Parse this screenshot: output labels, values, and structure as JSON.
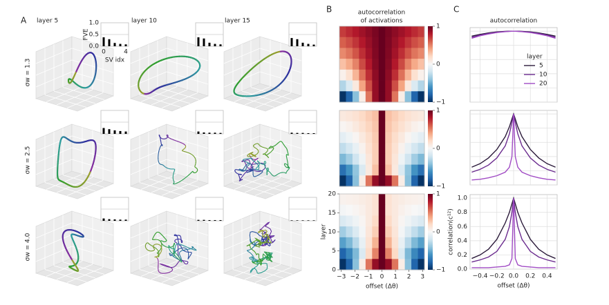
{
  "chart_data": [
    {
      "type": "trajectory_grid",
      "panel_label": "A",
      "columns": [
        "layer 5",
        "layer 10",
        "layer 15"
      ],
      "rows": [
        "σw = 1.3",
        "σw = 2.5",
        "σw = 4.0"
      ],
      "inset": {
        "type": "bar",
        "color": "#000000",
        "xlabel": "SV idx",
        "ylabel": "FVE",
        "xlim": [
          -0.5,
          4.5
        ],
        "xticks": [
          0,
          4
        ],
        "ylim": [
          0,
          1
        ],
        "yticks": [
          {
            "value": 0,
            "label": "0.0"
          },
          0.5,
          {
            "value": 1,
            "label": "1.0"
          }
        ],
        "values": [
          [
            [
              0.38,
              0.3,
              0.14,
              0.1,
              0.08
            ],
            [
              0.38,
              0.33,
              0.15,
              0.1,
              0.08
            ],
            [
              0.35,
              0.3,
              0.15,
              0.1,
              0.07
            ]
          ],
          [
            [
              0.25,
              0.2,
              0.15,
              0.12,
              0.1
            ],
            [
              0.1,
              0.06,
              0.05,
              0.05,
              0.04
            ],
            [
              0.05,
              0.04,
              0.04,
              0.03,
              0.03
            ]
          ],
          [
            [
              0.1,
              0.07,
              0.06,
              0.05,
              0.05
            ],
            [
              0.04,
              0.04,
              0.03,
              0.03,
              0.03
            ],
            [
              0.02,
              0.02,
              0.02,
              0.02,
              0.02
            ]
          ]
        ]
      }
    },
    {
      "type": "heatmap",
      "panel_label": "B",
      "title": [
        "autocorrelation",
        "of activations"
      ],
      "xlabel": "offset (Δθ)",
      "ylabel": "layer",
      "xlim": [
        -3.14,
        3.14
      ],
      "xticks": [
        {
          "value": -3,
          "label": "−3"
        },
        {
          "value": -2,
          "label": "−2"
        },
        {
          "value": -1,
          "label": "−1"
        },
        0,
        1,
        2,
        3
      ],
      "ylim": [
        0,
        20
      ],
      "yticks": [
        0,
        5,
        10,
        15,
        20
      ],
      "zlim": [
        -1,
        1
      ],
      "zticks": [
        {
          "value": -1,
          "label": "−1"
        },
        0,
        1
      ],
      "colormap": [
        "#053061",
        "#2166ac",
        "#4393c3",
        "#92c5de",
        "#d1e5f0",
        "#f7f7f7",
        "#fddbc7",
        "#f4a582",
        "#d6604d",
        "#b2182b",
        "#67001f"
      ],
      "maps": [
        [
          [
            0.7,
            0.75,
            0.8,
            0.85,
            0.9,
            0.95,
            1,
            0.95,
            0.9,
            0.85,
            0.8,
            0.75,
            0.7
          ],
          [
            0.6,
            0.65,
            0.72,
            0.8,
            0.87,
            0.94,
            1,
            0.94,
            0.87,
            0.8,
            0.72,
            0.65,
            0.6
          ],
          [
            0.48,
            0.54,
            0.63,
            0.74,
            0.84,
            0.93,
            1,
            0.93,
            0.84,
            0.74,
            0.63,
            0.54,
            0.48
          ],
          [
            0.3,
            0.38,
            0.5,
            0.66,
            0.8,
            0.92,
            1,
            0.92,
            0.8,
            0.66,
            0.5,
            0.38,
            0.3
          ],
          [
            0.05,
            0.16,
            0.34,
            0.55,
            0.74,
            0.9,
            1,
            0.9,
            0.74,
            0.55,
            0.34,
            0.16,
            0.05
          ],
          [
            -0.3,
            -0.15,
            0.1,
            0.4,
            0.65,
            0.88,
            1,
            0.88,
            0.65,
            0.4,
            0.1,
            -0.15,
            -0.3
          ],
          [
            -0.99,
            -0.8,
            -0.42,
            0.07,
            0.54,
            0.88,
            1,
            0.88,
            0.54,
            0.07,
            -0.42,
            -0.8,
            -0.99
          ]
        ],
        [
          [
            0.1,
            0.12,
            0.15,
            0.2,
            0.25,
            0.3,
            1,
            0.3,
            0.25,
            0.2,
            0.15,
            0.12,
            0.1
          ],
          [
            0.02,
            0.05,
            0.1,
            0.16,
            0.22,
            0.28,
            1,
            0.28,
            0.22,
            0.16,
            0.1,
            0.05,
            0.02
          ],
          [
            -0.1,
            -0.05,
            0.02,
            0.1,
            0.18,
            0.26,
            1,
            0.26,
            0.18,
            0.1,
            0.02,
            -0.05,
            -0.1
          ],
          [
            -0.25,
            -0.18,
            -0.08,
            0.04,
            0.15,
            0.25,
            1,
            0.25,
            0.15,
            0.04,
            -0.08,
            -0.18,
            -0.25
          ],
          [
            -0.45,
            -0.35,
            -0.2,
            -0.05,
            0.12,
            0.25,
            1,
            0.25,
            0.12,
            -0.05,
            -0.2,
            -0.35,
            -0.45
          ],
          [
            -0.75,
            -0.6,
            -0.4,
            -0.15,
            0.1,
            0.3,
            1,
            0.3,
            0.1,
            -0.15,
            -0.4,
            -0.6,
            -0.75
          ],
          [
            -0.99,
            -0.8,
            -0.42,
            0.07,
            0.54,
            0.88,
            1,
            0.88,
            0.54,
            0.07,
            -0.42,
            -0.8,
            -0.99
          ]
        ],
        [
          [
            0.04,
            0.05,
            0.06,
            0.08,
            0.1,
            0.15,
            1,
            0.15,
            0.1,
            0.08,
            0.06,
            0.05,
            0.04
          ],
          [
            -0.02,
            0,
            0.02,
            0.05,
            0.1,
            0.15,
            1,
            0.15,
            0.1,
            0.05,
            0.02,
            0,
            -0.02
          ],
          [
            -0.15,
            -0.1,
            -0.05,
            0.02,
            0.1,
            0.2,
            1,
            0.2,
            0.1,
            0.02,
            -0.05,
            -0.1,
            -0.15
          ],
          [
            -0.35,
            -0.25,
            -0.15,
            -0.02,
            0.12,
            0.25,
            1,
            0.25,
            0.12,
            -0.02,
            -0.15,
            -0.25,
            -0.35
          ],
          [
            -0.55,
            -0.45,
            -0.28,
            -0.08,
            0.15,
            0.35,
            1,
            0.35,
            0.15,
            -0.08,
            -0.28,
            -0.45,
            -0.55
          ],
          [
            -0.8,
            -0.65,
            -0.45,
            -0.15,
            0.2,
            0.5,
            1,
            0.5,
            0.2,
            -0.15,
            -0.45,
            -0.65,
            -0.8
          ],
          [
            -0.99,
            -0.8,
            -0.42,
            0.07,
            0.54,
            0.88,
            1,
            0.88,
            0.54,
            0.07,
            -0.42,
            -0.8,
            -0.99
          ]
        ]
      ]
    },
    {
      "type": "line",
      "panel_label": "C",
      "title": "autocorrelation",
      "xlabel": "offset (Δθ)",
      "ylabel": "correlation(c¹²)",
      "grid": true,
      "xlim": [
        -0.52,
        0.52
      ],
      "xticks": [
        {
          "value": -0.4,
          "label": "−0.4"
        },
        {
          "value": -0.2,
          "label": "−0.2"
        },
        {
          "value": 0,
          "label": "0.0"
        },
        0.2,
        0.4
      ],
      "ylim": [
        0,
        1.05
      ],
      "yticks": [
        {
          "value": 0,
          "label": "0.0"
        },
        0.2,
        0.4,
        0.6,
        0.8,
        {
          "value": 1,
          "label": "1.0"
        }
      ],
      "legend": {
        "title": "layer",
        "position": "center right"
      },
      "x": [
        -0.5,
        -0.4,
        -0.3,
        -0.2,
        -0.1,
        -0.05,
        -0.02,
        0,
        0.02,
        0.05,
        0.1,
        0.2,
        0.3,
        0.4,
        0.5
      ],
      "series": [
        {
          "name": "5",
          "color": "#2b1a3a",
          "values": [
            [
              0.93,
              0.955,
              0.975,
              0.99,
              0.997,
              0.999,
              1,
              1,
              1,
              0.999,
              0.997,
              0.99,
              0.975,
              0.955,
              0.93
            ],
            [
              0.25,
              0.3,
              0.38,
              0.5,
              0.68,
              0.82,
              0.93,
              1,
              0.93,
              0.82,
              0.68,
              0.5,
              0.38,
              0.3,
              0.25
            ],
            [
              0.15,
              0.2,
              0.28,
              0.42,
              0.65,
              0.8,
              0.92,
              1,
              0.92,
              0.8,
              0.65,
              0.42,
              0.28,
              0.2,
              0.15
            ]
          ]
        },
        {
          "name": "10",
          "color": "#6a2a8e",
          "values": [
            [
              0.915,
              0.945,
              0.968,
              0.985,
              0.995,
              0.998,
              0.999,
              1,
              0.999,
              0.998,
              0.995,
              0.985,
              0.968,
              0.945,
              0.915
            ],
            [
              0.18,
              0.22,
              0.28,
              0.38,
              0.55,
              0.72,
              0.88,
              1,
              0.88,
              0.72,
              0.55,
              0.38,
              0.28,
              0.22,
              0.18
            ],
            [
              0.1,
              0.13,
              0.17,
              0.25,
              0.42,
              0.6,
              0.8,
              1,
              0.8,
              0.6,
              0.42,
              0.25,
              0.17,
              0.13,
              0.1
            ]
          ]
        },
        {
          "name": "20",
          "color": "#a04bc4",
          "values": [
            [
              0.9,
              0.935,
              0.96,
              0.98,
              0.992,
              0.996,
              0.998,
              1,
              0.998,
              0.996,
              0.992,
              0.98,
              0.96,
              0.935,
              0.9
            ],
            [
              0.07,
              0.08,
              0.1,
              0.13,
              0.18,
              0.25,
              0.4,
              1,
              0.4,
              0.25,
              0.18,
              0.13,
              0.1,
              0.08,
              0.07
            ],
            [
              0.02,
              0.02,
              0.02,
              0.03,
              0.04,
              0.06,
              0.15,
              1,
              0.15,
              0.06,
              0.04,
              0.03,
              0.02,
              0.02,
              0.02
            ]
          ]
        }
      ]
    }
  ]
}
